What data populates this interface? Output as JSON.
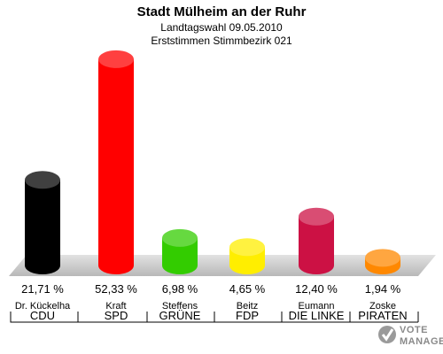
{
  "chart_data": {
    "type": "bar",
    "title": "Stadt Mülheim an der Ruhr",
    "subtitle": "Landtagswahl 09.05.2010",
    "subtitle2": "Erststimmen Stimmbezirk 021",
    "ylim": [
      0,
      55
    ],
    "categories": [
      "CDU",
      "SPD",
      "GRÜNE",
      "FDP",
      "DIE LINKE",
      "PIRATEN"
    ],
    "candidates": [
      "Dr. Kückelha",
      "Kraft",
      "Steffens",
      "Beitz",
      "Eumann",
      "Zoske"
    ],
    "values": [
      21.71,
      52.33,
      6.98,
      4.65,
      12.4,
      1.94
    ],
    "value_labels": [
      "21,71 %",
      "52,33 %",
      "6,98 %",
      "4,65 %",
      "12,40 %",
      "1,94 %"
    ],
    "colors": [
      "#000000",
      "#ff0000",
      "#33cc00",
      "#ffee00",
      "#cc1144",
      "#ff8800"
    ],
    "grid": false,
    "legend": "none"
  },
  "logo": {
    "line1": "VOTE",
    "line2": "MANAGER"
  }
}
